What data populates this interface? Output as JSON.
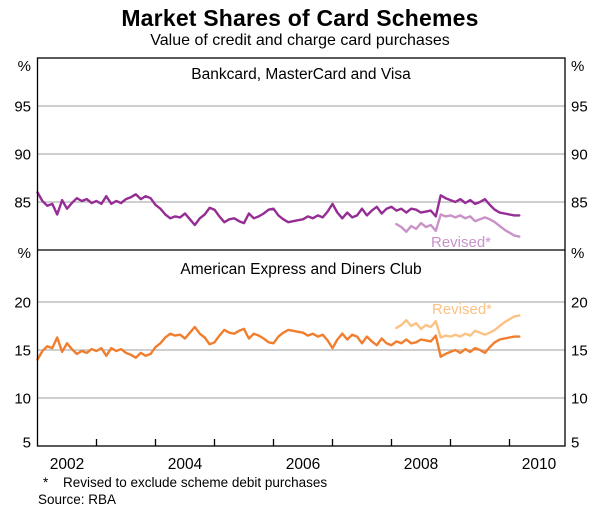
{
  "chart": {
    "title": "Market Shares of Card Schemes",
    "subtitle": "Value of credit and charge card purchases",
    "footnote_marker": "*",
    "footnote": "Revised to exclude scheme debit purchases",
    "source": "Source: RBA"
  },
  "chart_data": {
    "type": "line",
    "title": "Market Shares of Card Schemes",
    "subtitle": "Value of credit and charge card purchases",
    "x_unit": "monthly",
    "x_range_years": [
      2002,
      2011
    ],
    "xtick_labels": [
      2002,
      2004,
      2006,
      2008,
      2010
    ],
    "x_minor_ticks_years": [
      2003,
      2004,
      2005,
      2006,
      2007,
      2008,
      2009,
      2010
    ],
    "grid": true,
    "legend_position": "inline-annotations",
    "panels": [
      {
        "title": "Bankcard, MasterCard and Visa",
        "ylabel": "%",
        "ylim": [
          80,
          100
        ],
        "yticks": [
          85,
          90,
          95
        ],
        "annotation": {
          "text": "Revised*",
          "color": "#C893C8"
        },
        "series": [
          {
            "name": "Bankcard, MasterCard and Visa",
            "color": "#952D95",
            "start_month": "2002-01",
            "values": [
              86.0,
              85.1,
              84.6,
              84.8,
              83.7,
              85.2,
              84.3,
              84.9,
              85.4,
              85.1,
              85.3,
              84.9,
              85.1,
              84.8,
              85.6,
              84.8,
              85.1,
              84.9,
              85.3,
              85.5,
              85.8,
              85.3,
              85.6,
              85.4,
              84.7,
              84.3,
              83.7,
              83.3,
              83.5,
              83.4,
              83.8,
              83.2,
              82.6,
              83.3,
              83.7,
              84.4,
              84.2,
              83.5,
              82.9,
              83.2,
              83.3,
              83.0,
              82.8,
              83.8,
              83.3,
              83.5,
              83.8,
              84.2,
              84.3,
              83.6,
              83.2,
              82.9,
              83.0,
              83.1,
              83.2,
              83.5,
              83.3,
              83.6,
              83.4,
              84.0,
              84.8,
              83.9,
              83.3,
              83.9,
              83.4,
              83.6,
              84.3,
              83.6,
              84.1,
              84.5,
              83.8,
              84.3,
              84.5,
              84.1,
              84.3,
              83.9,
              84.3,
              84.2,
              83.9,
              84.0,
              84.1,
              83.5,
              85.7,
              85.4,
              85.2,
              85.0,
              85.3,
              84.9,
              85.2,
              84.8,
              85.0,
              85.3,
              84.7,
              84.2,
              83.9,
              83.8,
              83.7,
              83.6,
              83.6
            ]
          },
          {
            "name": "Bankcard, MasterCard and Visa (revised to exclude scheme debit purchases)",
            "revised": true,
            "color": "#C893C8",
            "start_month": "2008-02",
            "values": [
              82.7,
              82.4,
              81.9,
              82.5,
              82.2,
              82.8,
              82.4,
              82.6,
              82.0,
              83.7,
              83.5,
              83.6,
              83.4,
              83.6,
              83.3,
              83.5,
              83.0,
              83.2,
              83.4,
              83.2,
              82.9,
              82.5,
              82.1,
              81.8,
              81.5,
              81.4
            ]
          }
        ]
      },
      {
        "title": "American Express and Diners Club",
        "ylabel": "%",
        "ylim": [
          5,
          25.42
        ],
        "yticks": [
          5,
          10,
          15,
          20
        ],
        "annotation": {
          "text": "Revised*",
          "color": "#FBC285"
        },
        "series": [
          {
            "name": "American Express and Diners Club",
            "color": "#F07E2E",
            "start_month": "2002-01",
            "values": [
              14.0,
              14.9,
              15.4,
              15.2,
              16.3,
              14.8,
              15.7,
              15.1,
              14.6,
              14.9,
              14.7,
              15.1,
              14.9,
              15.2,
              14.4,
              15.2,
              14.9,
              15.1,
              14.7,
              14.5,
              14.2,
              14.7,
              14.4,
              14.6,
              15.3,
              15.7,
              16.3,
              16.7,
              16.5,
              16.6,
              16.2,
              16.8,
              17.4,
              16.7,
              16.3,
              15.6,
              15.8,
              16.5,
              17.1,
              16.8,
              16.7,
              17.0,
              17.2,
              16.2,
              16.7,
              16.5,
              16.2,
              15.8,
              15.7,
              16.4,
              16.8,
              17.1,
              17.0,
              16.9,
              16.8,
              16.5,
              16.7,
              16.4,
              16.6,
              16.0,
              15.2,
              16.1,
              16.7,
              16.1,
              16.6,
              16.4,
              15.7,
              16.4,
              15.9,
              15.5,
              16.2,
              15.7,
              15.5,
              15.9,
              15.7,
              16.1,
              15.7,
              15.8,
              16.1,
              16.0,
              15.9,
              16.5,
              14.3,
              14.6,
              14.8,
              15.0,
              14.7,
              15.1,
              14.8,
              15.2,
              15.0,
              14.7,
              15.3,
              15.8,
              16.1,
              16.2,
              16.3,
              16.4,
              16.4
            ]
          },
          {
            "name": "American Express and Diners Club (revised to exclude scheme debit purchases)",
            "revised": true,
            "color": "#FBC285",
            "start_month": "2008-02",
            "values": [
              17.3,
              17.6,
              18.1,
              17.5,
              17.8,
              17.2,
              17.6,
              17.4,
              18.0,
              16.3,
              16.5,
              16.4,
              16.6,
              16.4,
              16.7,
              16.5,
              17.0,
              16.8,
              16.6,
              16.8,
              17.1,
              17.5,
              17.9,
              18.2,
              18.5,
              18.6
            ]
          }
        ]
      }
    ]
  }
}
